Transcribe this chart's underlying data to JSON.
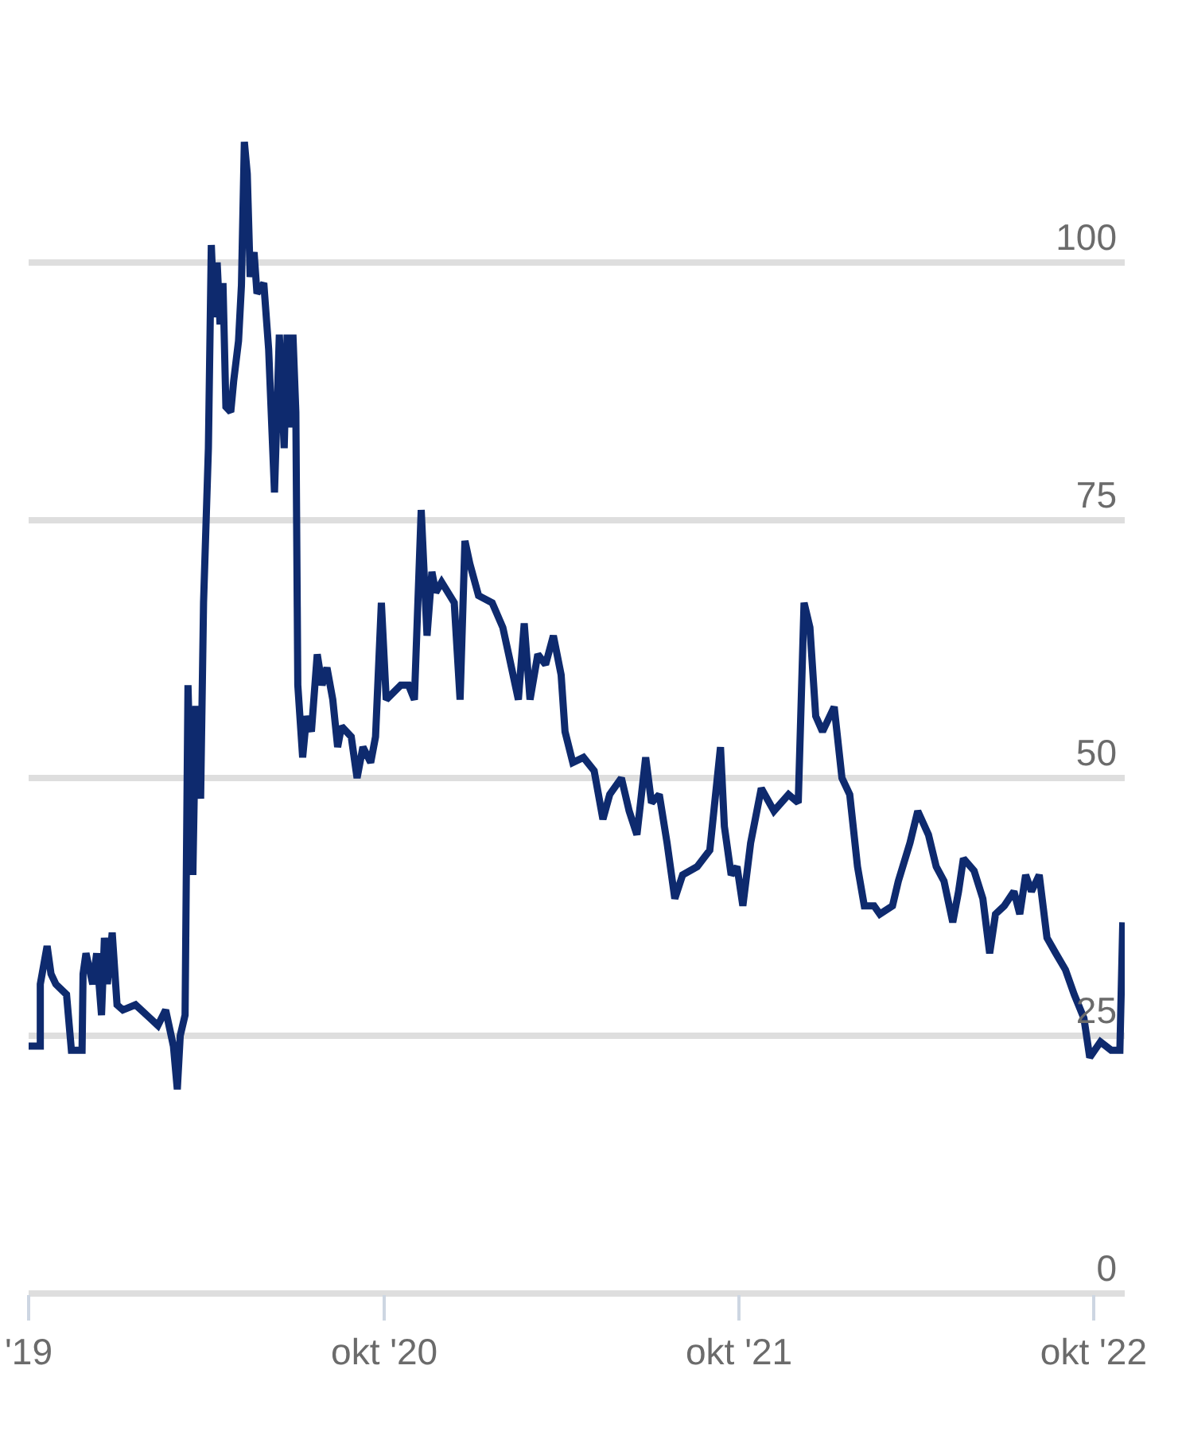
{
  "chart_data": {
    "type": "line",
    "x": [
      "2019-10-01",
      "2019-10-13",
      "2019-10-13",
      "2019-10-20",
      "2019-10-24",
      "2019-10-29",
      "2019-11-09",
      "2019-11-14",
      "2019-11-25",
      "2019-11-26",
      "2019-11-29",
      "2019-12-06",
      "2019-12-10",
      "2019-12-15",
      "2019-12-18",
      "2019-12-21",
      "2019-12-26",
      "2019-12-31",
      "2020-01-06",
      "2020-01-19",
      "2020-02-03",
      "2020-02-11",
      "2020-02-19",
      "2020-02-27",
      "2020-03-02",
      "2020-03-05",
      "2020-03-10",
      "2020-03-13",
      "2020-03-18",
      "2020-03-21",
      "2020-03-26",
      "2020-03-29",
      "2020-04-03",
      "2020-04-06",
      "2020-04-09",
      "2020-04-12",
      "2020-04-15",
      "2020-04-18",
      "2020-04-21",
      "2020-04-26",
      "2020-04-29",
      "2020-05-04",
      "2020-05-07",
      "2020-05-10",
      "2020-05-13",
      "2020-05-16",
      "2020-05-20",
      "2020-05-23",
      "2020-05-30",
      "2020-06-04",
      "2020-06-10",
      "2020-06-15",
      "2020-06-20",
      "2020-06-23",
      "2020-06-26",
      "2020-06-29",
      "2020-07-02",
      "2020-07-04",
      "2020-07-09",
      "2020-07-13",
      "2020-07-18",
      "2020-07-24",
      "2020-07-29",
      "2020-08-03",
      "2020-08-09",
      "2020-08-14",
      "2020-08-18",
      "2020-08-28",
      "2020-09-03",
      "2020-09-09",
      "2020-09-17",
      "2020-09-22",
      "2020-09-28",
      "2020-10-03",
      "2020-10-18",
      "2020-10-26",
      "2020-11-01",
      "2020-11-08",
      "2020-11-14",
      "2020-11-19",
      "2020-11-23",
      "2020-11-29",
      "2020-12-12",
      "2020-12-18",
      "2020-12-23",
      "2020-12-28",
      "2021-01-06",
      "2021-01-20",
      "2021-01-31",
      "2021-02-06",
      "2021-02-16",
      "2021-02-22",
      "2021-02-28",
      "2021-03-08",
      "2021-03-16",
      "2021-03-24",
      "2021-04-01",
      "2021-04-05",
      "2021-04-13",
      "2021-04-24",
      "2021-05-05",
      "2021-05-14",
      "2021-05-21",
      "2021-06-02",
      "2021-06-10",
      "2021-06-18",
      "2021-06-27",
      "2021-07-03",
      "2021-07-11",
      "2021-07-19",
      "2021-07-27",
      "2021-08-04",
      "2021-08-19",
      "2021-09-01",
      "2021-09-12",
      "2021-09-16",
      "2021-09-23",
      "2021-09-29",
      "2021-10-05",
      "2021-10-13",
      "2021-10-24",
      "2021-11-06",
      "2021-11-21",
      "2021-12-01",
      "2021-12-07",
      "2021-12-13",
      "2021-12-19",
      "2021-12-26",
      "2022-01-07",
      "2022-01-15",
      "2022-01-23",
      "2022-01-31",
      "2022-02-07",
      "2022-02-17",
      "2022-02-23",
      "2022-03-08",
      "2022-03-14",
      "2022-03-26",
      "2022-04-03",
      "2022-04-14",
      "2022-04-22",
      "2022-04-30",
      "2022-05-09",
      "2022-05-15",
      "2022-05-20",
      "2022-05-31",
      "2022-06-09",
      "2022-06-16",
      "2022-06-22",
      "2022-07-01",
      "2022-07-11",
      "2022-07-17",
      "2022-07-23",
      "2022-07-29",
      "2022-08-06",
      "2022-08-14",
      "2022-08-23",
      "2022-09-02",
      "2022-09-11",
      "2022-09-21",
      "2022-09-27",
      "2022-10-08",
      "2022-10-19",
      "2022-10-28",
      "2022-10-31"
    ],
    "series": [
      {
        "color": "#0e2a6e",
        "values": [
          24,
          24,
          30,
          33.7,
          31,
          30,
          29,
          23.6,
          23.6,
          31,
          33,
          30,
          33,
          27,
          34.5,
          30,
          35,
          28,
          27.5,
          28,
          26.7,
          26,
          27.5,
          24,
          19.8,
          25,
          27,
          59,
          40.6,
          57,
          48,
          67,
          82,
          101.7,
          94.7,
          100,
          94,
          98,
          86,
          85.5,
          88.5,
          92.4,
          97.8,
          111.7,
          108.6,
          98.6,
          101,
          97,
          98,
          91.6,
          77.7,
          93,
          82,
          93,
          84,
          93,
          85.5,
          59,
          52,
          56,
          54.5,
          62,
          59,
          60.7,
          57.6,
          53,
          55,
          54,
          50,
          53,
          51.5,
          54,
          67,
          57.6,
          59,
          59,
          57.6,
          76,
          63.8,
          70,
          68,
          69,
          67,
          57.6,
          73,
          70.8,
          67.7,
          67,
          64.6,
          62,
          57.6,
          65,
          57.6,
          62,
          61,
          63.8,
          60,
          54.5,
          51.5,
          52,
          50.7,
          46,
          48.4,
          50,
          46.8,
          44.5,
          52,
          47.6,
          48.4,
          43.7,
          38.3,
          40.6,
          41.4,
          43,
          53,
          45.3,
          40.6,
          41.4,
          37.6,
          43.7,
          49,
          46.8,
          48.4,
          47.6,
          67,
          64.6,
          56,
          54.5,
          56.9,
          50,
          48.4,
          41.4,
          37.6,
          37.6,
          36.8,
          37.6,
          40,
          43.7,
          46.8,
          44.5,
          41.4,
          40,
          36,
          39,
          42.2,
          41,
          38.3,
          33,
          36.8,
          37.6,
          39,
          36.8,
          40.6,
          39,
          40.6,
          34.5,
          33,
          31.4,
          29,
          26.7,
          22.9,
          24.4,
          23.6,
          23.6,
          36
        ]
      }
    ],
    "xlim": [
      "2019-10-01",
      "2022-11-02"
    ],
    "xticks": [
      {
        "value": "2019-10-01",
        "label": "'19"
      },
      {
        "value": "2020-10-01",
        "label": "okt '20"
      },
      {
        "value": "2021-10-01",
        "label": "okt '21"
      },
      {
        "value": "2022-10-01",
        "label": "okt '22"
      }
    ],
    "ylim": [
      0,
      125
    ],
    "yticks": [
      0,
      25,
      50,
      75,
      100,
      {
        "value": 125,
        "label": null
      }
    ],
    "grid": "y",
    "marker": "none",
    "line_style": "solid"
  }
}
